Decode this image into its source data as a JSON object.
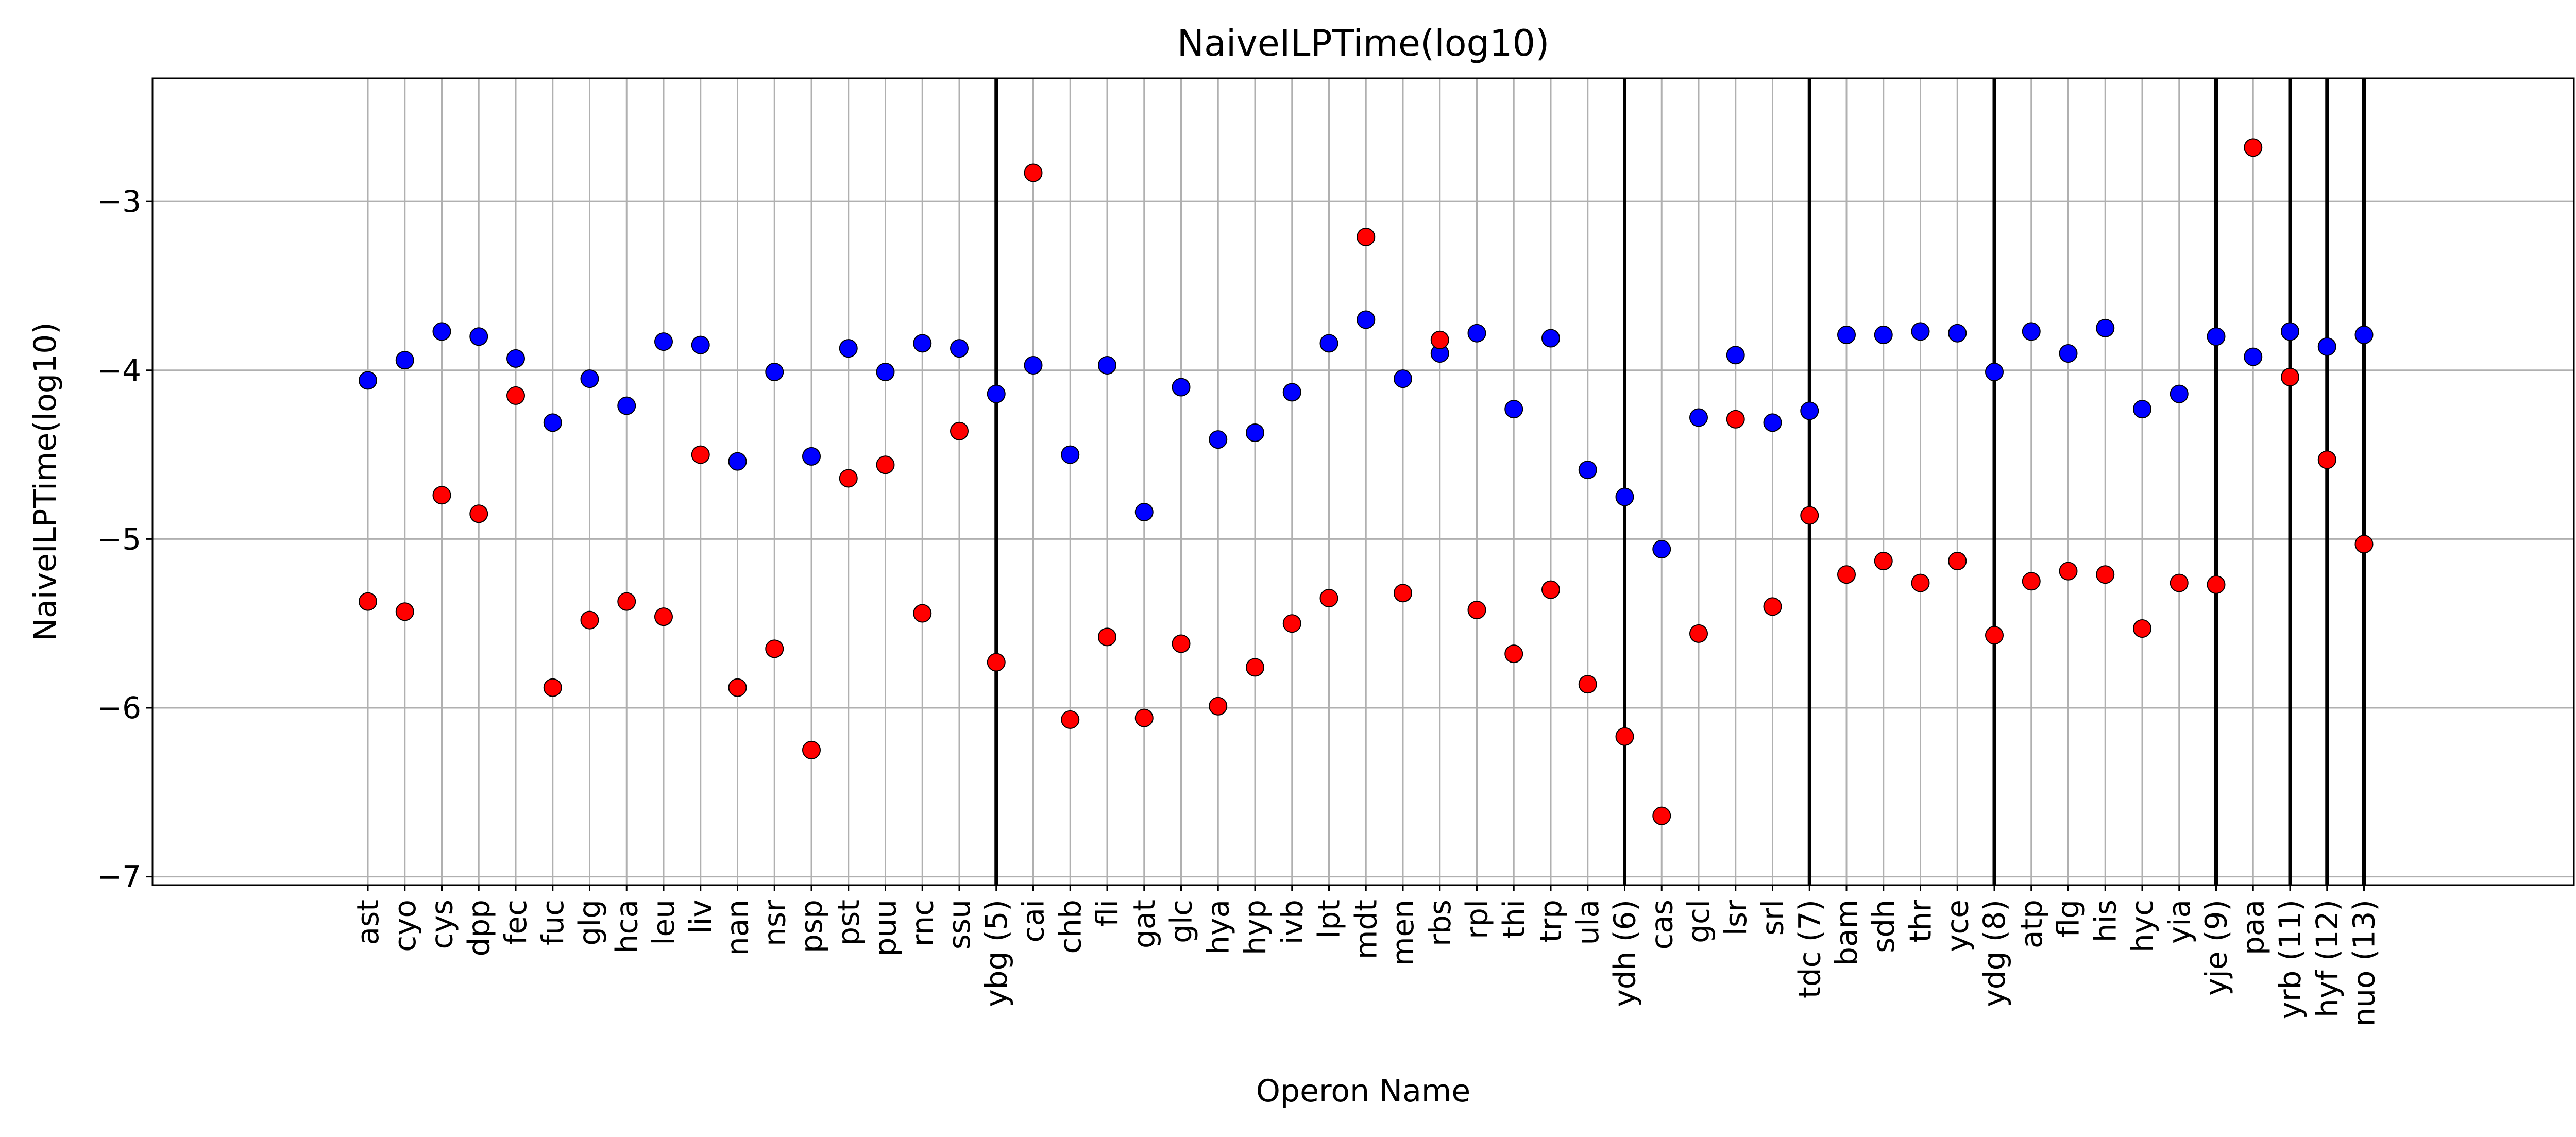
{
  "chart_data": {
    "type": "scatter",
    "title": "NaiveILPTime(log10)",
    "xlabel": "Operon Name",
    "ylabel": "NaiveILPTime(log10)",
    "ylim": [
      -7.05,
      -2.27
    ],
    "yticks": [
      -3,
      -4,
      -5,
      -6,
      -7
    ],
    "ytick_labels": [
      "−3",
      "−4",
      "−5",
      "−6",
      "−7"
    ],
    "grid": true,
    "legend": "none",
    "colors": {
      "blue": "#0000ff",
      "red": "#ff0000",
      "marker_edge": "#000000",
      "grid": "#b0b0b0",
      "vline": "#000000"
    },
    "categories": [
      "ast",
      "cyo",
      "cys",
      "dpp",
      "fec",
      "fuc",
      "glg",
      "hca",
      "leu",
      "liv",
      "nan",
      "nsr",
      "psp",
      "pst",
      "puu",
      "rnc",
      "ssu",
      "ybg (5)",
      "cai",
      "chb",
      "fli",
      "gat",
      "glc",
      "hya",
      "hyp",
      "ivb",
      "lpt",
      "mdt",
      "men",
      "rbs",
      "rpl",
      "thi",
      "trp",
      "ula",
      "ydh (6)",
      "cas",
      "gcl",
      "lsr",
      "srl",
      "tdc (7)",
      "bam",
      "sdh",
      "thr",
      "yce",
      "ydg (8)",
      "atp",
      "flg",
      "his",
      "hyc",
      "yia",
      "yje (9)",
      "paa",
      "yrb (11)",
      "hyf (12)",
      "nuo (13)"
    ],
    "vlines": [
      "ybg (5)",
      "ydh (6)",
      "tdc (7)",
      "ydg (8)",
      "yje (9)",
      "yrb (11)",
      "hyf (12)",
      "nuo (13)"
    ],
    "series": [
      {
        "color": "blue",
        "values": [
          -4.06,
          -3.94,
          -3.77,
          -3.8,
          -3.93,
          -4.31,
          -4.05,
          -4.21,
          -3.83,
          -3.85,
          -4.54,
          -4.01,
          -4.51,
          -3.87,
          -4.01,
          -3.84,
          -3.87,
          -4.14,
          -3.97,
          -4.5,
          -3.97,
          -4.84,
          -4.1,
          -4.41,
          -4.37,
          -4.13,
          -3.84,
          -3.7,
          -4.05,
          -3.9,
          -3.78,
          -4.23,
          -3.81,
          -4.59,
          -4.75,
          -5.06,
          -4.28,
          -3.91,
          -4.31,
          -4.24,
          -3.79,
          -3.79,
          -3.77,
          -3.78,
          -4.01,
          -3.77,
          -3.9,
          -3.75,
          -4.23,
          -4.14,
          -3.8,
          -3.92,
          -3.77,
          -3.86,
          -3.79
        ]
      },
      {
        "color": "red",
        "values": [
          -5.37,
          -5.43,
          -4.74,
          -4.85,
          -4.15,
          -5.88,
          -5.48,
          -5.37,
          -5.46,
          -4.5,
          -5.88,
          -5.65,
          -6.25,
          -4.64,
          -4.56,
          -5.44,
          -4.36,
          -5.73,
          -2.83,
          -6.07,
          -5.58,
          -6.06,
          -5.62,
          -5.99,
          -5.76,
          -5.5,
          -5.35,
          -3.21,
          -5.32,
          -3.82,
          -5.42,
          -5.68,
          -5.3,
          -5.86,
          -6.17,
          -6.64,
          -5.56,
          -4.29,
          -5.4,
          -4.86,
          -5.21,
          -5.13,
          -5.26,
          -5.13,
          -5.57,
          -5.25,
          -5.19,
          -5.21,
          -5.53,
          -5.26,
          -5.27,
          -2.68,
          -4.04,
          -4.53,
          -5.03
        ]
      }
    ]
  }
}
